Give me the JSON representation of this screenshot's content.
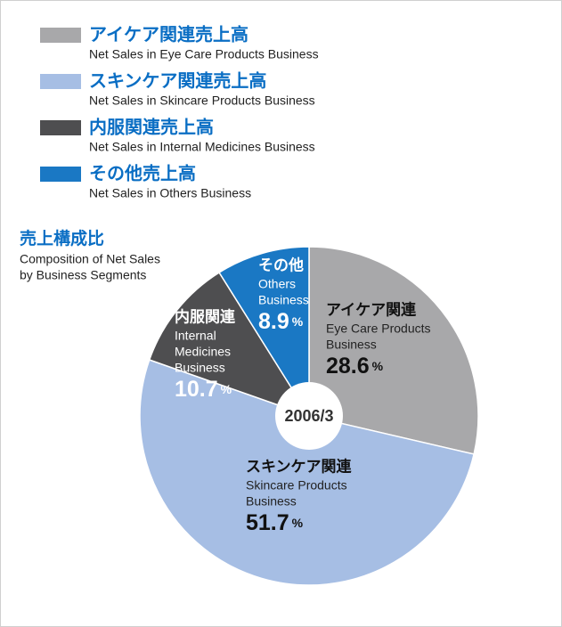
{
  "chart_data": {
    "type": "pie",
    "legend": [
      {
        "name": "アイケア関連売上高",
        "description": "Net Sales in Eye Care Products Business"
      },
      {
        "name": "スキンケア関連売上高",
        "description": "Net Sales in Skincare Products Business"
      },
      {
        "name": "内服関連売上高",
        "description": "Net Sales in Internal Medicines Business"
      },
      {
        "name": "その他売上高",
        "description": "Net Sales in Others Business"
      }
    ],
    "title": "売上構成比",
    "subtitle": [
      "Composition of Net Sales",
      "by Business Segments"
    ],
    "center_label": "2006/3",
    "categories": [
      "アイケア関連",
      "スキンケア関連",
      "内服関連",
      "その他"
    ],
    "category_descriptions": [
      [
        "Eye Care Products",
        "Business"
      ],
      [
        "Skincare Products",
        "Business"
      ],
      [
        "Internal",
        "Medicines",
        "Business"
      ],
      [
        "Others",
        "Business"
      ]
    ],
    "values": [
      28.6,
      51.7,
      10.7,
      8.9
    ],
    "unit": "%",
    "colors": [
      "#a8a8aa",
      "#a6bee4",
      "#4e4e50",
      "#1a78c4"
    ]
  }
}
